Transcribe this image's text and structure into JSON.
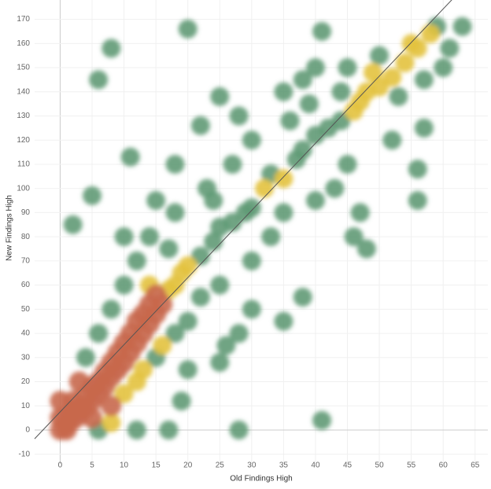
{
  "chart_data": {
    "type": "density",
    "x_label": "Old Findings High",
    "y_label": "New Findings High",
    "xlim": [
      -4,
      67
    ],
    "ylim": [
      -14,
      178
    ],
    "xticks": [
      0,
      5,
      10,
      15,
      20,
      25,
      30,
      35,
      40,
      45,
      50,
      55,
      60,
      65
    ],
    "yticks": [
      -10,
      0,
      10,
      20,
      30,
      40,
      50,
      60,
      70,
      80,
      90,
      100,
      110,
      120,
      130,
      140,
      150,
      160,
      170
    ],
    "grid": true,
    "colors": [
      "#5f9a76",
      "#e3c23e",
      "#c8684c"
    ],
    "trend_line": {
      "slope": 2.78,
      "intercept": 7.5,
      "color": "#555555"
    },
    "x": [
      1,
      1,
      2,
      2,
      3,
      3,
      4,
      4,
      5,
      5,
      6,
      6,
      7,
      7,
      8,
      8,
      9,
      9,
      10,
      10,
      11,
      11,
      12,
      12,
      13,
      13,
      14,
      14,
      15,
      15,
      16,
      17,
      18,
      19,
      20,
      22,
      24,
      25,
      27,
      29,
      30,
      32,
      33,
      35,
      37,
      38,
      40,
      42,
      44,
      46,
      47,
      48,
      50,
      52,
      54,
      56,
      58,
      59,
      63,
      41,
      40,
      38,
      20,
      8,
      6,
      11,
      5,
      2,
      10,
      15,
      18,
      22,
      25,
      28,
      30,
      35,
      45,
      50,
      55,
      60,
      43,
      47,
      48,
      46,
      38,
      35,
      30,
      28,
      25,
      26,
      20,
      19,
      12,
      17,
      28,
      41,
      6,
      56,
      56,
      57,
      45,
      52,
      30,
      33,
      35,
      40,
      25,
      22,
      20,
      18,
      15,
      12,
      10,
      8,
      23,
      18,
      14,
      12,
      10,
      8,
      6,
      4,
      3,
      2,
      0,
      0,
      1,
      0,
      5,
      8,
      13,
      16,
      14,
      17,
      24,
      27,
      36,
      39,
      44,
      49,
      53,
      57,
      61
    ],
    "y": [
      2,
      5,
      4,
      8,
      6,
      10,
      9,
      14,
      12,
      18,
      15,
      20,
      18,
      24,
      22,
      28,
      25,
      32,
      28,
      36,
      32,
      40,
      36,
      45,
      40,
      48,
      44,
      52,
      48,
      56,
      52,
      58,
      60,
      65,
      68,
      72,
      78,
      84,
      86,
      90,
      92,
      100,
      106,
      104,
      112,
      116,
      122,
      125,
      128,
      132,
      136,
      140,
      142,
      146,
      152,
      158,
      164,
      167,
      167,
      165,
      150,
      145,
      166,
      158,
      145,
      113,
      97,
      85,
      80,
      95,
      110,
      126,
      138,
      130,
      120,
      140,
      150,
      155,
      160,
      150,
      100,
      90,
      75,
      80,
      55,
      45,
      50,
      40,
      28,
      35,
      25,
      12,
      0,
      0,
      0,
      4,
      0,
      95,
      108,
      125,
      110,
      120,
      70,
      80,
      90,
      95,
      60,
      55,
      45,
      40,
      30,
      20,
      15,
      10,
      100,
      90,
      80,
      70,
      60,
      50,
      40,
      30,
      20,
      12,
      0,
      5,
      0,
      12,
      5,
      3,
      25,
      35,
      60,
      75,
      95,
      110,
      128,
      135,
      140,
      148,
      138,
      145,
      158
    ]
  }
}
